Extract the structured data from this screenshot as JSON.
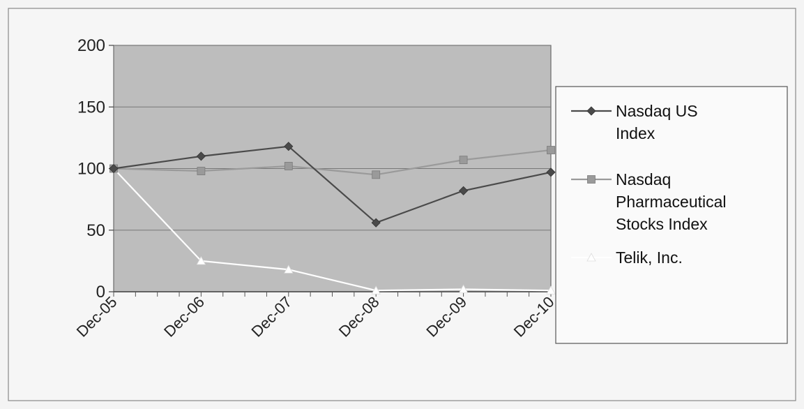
{
  "chart_data": {
    "type": "line",
    "title": "",
    "xlabel": "",
    "ylabel": "",
    "categories": [
      "Dec-05",
      "Dec-06",
      "Dec-07",
      "Dec-08",
      "Dec-09",
      "Dec-10"
    ],
    "ylim": [
      0,
      200
    ],
    "yticks": [
      "0",
      "50",
      "100",
      "150",
      "200"
    ],
    "grid": true,
    "legend_position": "right",
    "series": [
      {
        "name_lines": [
          "Nasdaq US",
          "Index"
        ],
        "values": [
          100,
          110,
          118,
          56,
          82,
          97
        ],
        "color": "#4a4a4a",
        "marker": "diamond"
      },
      {
        "name_lines": [
          "Nasdaq",
          "Pharmaceutical",
          "Stocks Index"
        ],
        "values": [
          100,
          98,
          102,
          95,
          107,
          115
        ],
        "color": "#9a9a9a",
        "marker": "square"
      },
      {
        "name_lines": [
          "Telik, Inc."
        ],
        "values": [
          100,
          25,
          18,
          1,
          2,
          1
        ],
        "color": "#ffffff",
        "marker": "triangle"
      }
    ]
  }
}
